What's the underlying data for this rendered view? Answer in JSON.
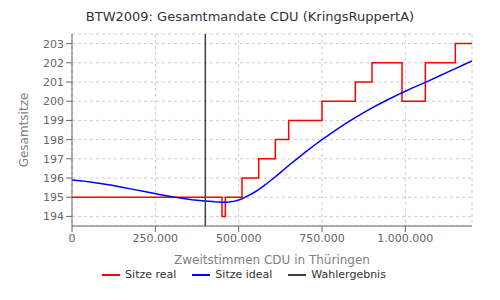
{
  "chart_data": {
    "type": "line",
    "title": "BTW2009: Gesamtmandate CDU (KringsRuppertA)",
    "xlabel": "Zweitstimmen CDU in Thüringen",
    "ylabel": "Gesamtsitze",
    "xlim": [
      0,
      1200000
    ],
    "ylim": [
      193.5,
      203.5
    ],
    "xticks": [
      0,
      {
        "value": 250000,
        "label": "250.000"
      },
      {
        "value": 500000,
        "label": "500.000"
      },
      {
        "value": 750000,
        "label": "750.000"
      },
      {
        "value": 1000000,
        "label": "1.000.000"
      }
    ],
    "yticks": [
      194,
      195,
      196,
      197,
      198,
      199,
      200,
      201,
      202,
      203
    ],
    "grid": true,
    "legend": "bottom",
    "series": [
      {
        "name": "Sitze real",
        "color": "red",
        "x": [
          0,
          449999,
          450000,
          459999,
          460000,
          509999,
          510000,
          559999,
          560000,
          609999,
          610000,
          649999,
          650000,
          699999,
          700000,
          749999,
          750000,
          799999,
          800000,
          849999,
          850000,
          899999,
          900000,
          939999,
          940000,
          989999,
          990000,
          1059999,
          1060000,
          1099999,
          1100000,
          1149999,
          1150000,
          1200000
        ],
        "values": [
          195,
          195,
          194,
          194,
          195,
          195,
          196,
          196,
          197,
          197,
          198,
          198,
          199,
          199,
          199,
          199,
          200,
          200,
          200,
          200,
          201,
          201,
          202,
          202,
          202,
          202,
          200,
          200,
          202,
          202,
          202,
          202,
          203,
          203
        ]
      },
      {
        "name": "Sitze ideal",
        "color": "blue",
        "x": [
          0,
          30000,
          60000,
          90000,
          120000,
          150000,
          180000,
          210000,
          240000,
          270000,
          300000,
          330000,
          360000,
          390000,
          410000,
          430000,
          450000,
          460000,
          470000,
          480000,
          490000,
          500000,
          510000,
          520000,
          540000,
          560000,
          580000,
          600000,
          625000,
          650000,
          675000,
          700000,
          725000,
          750000,
          775000,
          800000,
          825000,
          850000,
          875000,
          900000,
          925000,
          950000,
          975000,
          1000000,
          1025000,
          1050000,
          1075000,
          1100000,
          1125000,
          1150000,
          1175000,
          1200000
        ],
        "values": [
          195.9,
          195.85,
          195.78,
          195.7,
          195.62,
          195.52,
          195.42,
          195.32,
          195.22,
          195.12,
          195.02,
          194.94,
          194.87,
          194.82,
          194.79,
          194.76,
          194.74,
          194.74,
          194.75,
          194.77,
          194.8,
          194.85,
          194.92,
          195.0,
          195.18,
          195.4,
          195.65,
          195.92,
          196.28,
          196.65,
          197.0,
          197.35,
          197.68,
          198.0,
          198.3,
          198.6,
          198.88,
          199.15,
          199.4,
          199.65,
          199.88,
          200.1,
          200.32,
          200.52,
          200.72,
          200.9,
          201.1,
          201.3,
          201.5,
          201.7,
          201.9,
          202.1
        ]
      },
      {
        "name": "Wahlergebnis",
        "type": "vline",
        "color": "#404040",
        "x": 400000
      }
    ]
  }
}
